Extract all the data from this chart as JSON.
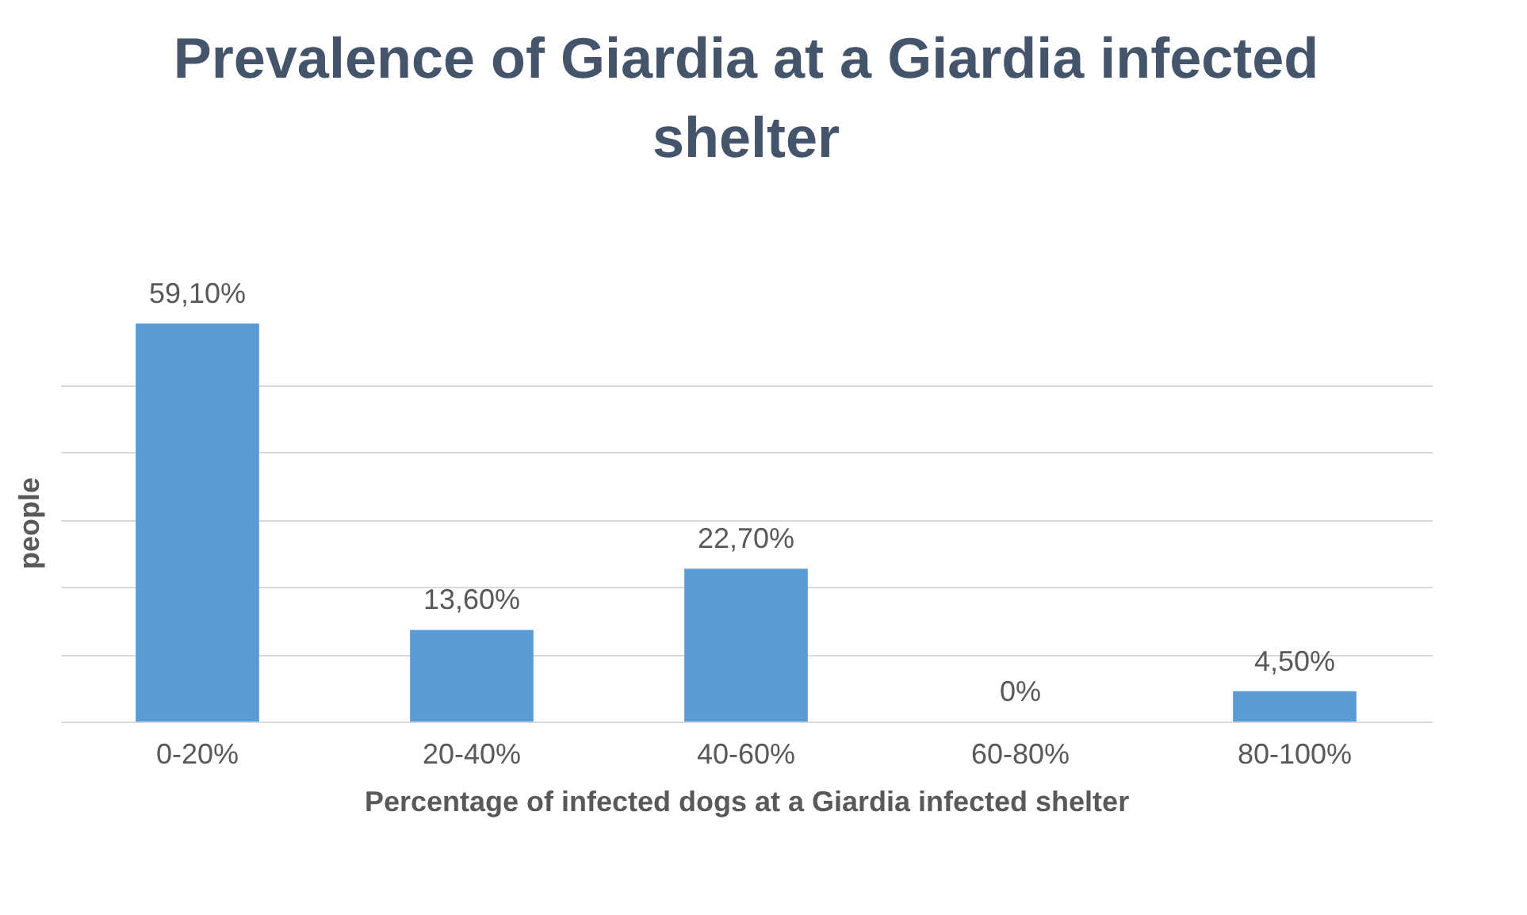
{
  "chart_data": {
    "type": "bar",
    "title": "Prevalence of Giardia at a Giardia infected shelter",
    "xlabel": "Percentage of infected dogs at a Giardia infected shelter",
    "ylabel": "people",
    "categories": [
      "0-20%",
      "20-40%",
      "40-60%",
      "60-80%",
      "80-100%"
    ],
    "values": [
      59.1,
      13.6,
      22.7,
      0,
      4.5
    ],
    "value_labels": [
      "59,10%",
      "13,60%",
      "22,70%",
      "0%",
      "4,50%"
    ],
    "color": "#5b9bd5",
    "grid": "y"
  }
}
